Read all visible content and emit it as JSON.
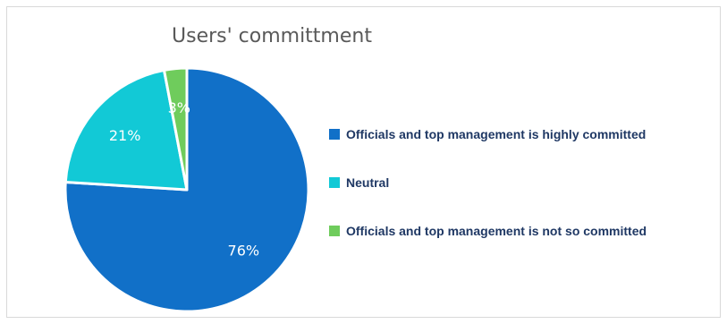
{
  "chart_data": {
    "type": "pie",
    "title": "Users' committment",
    "categories": [
      "Officials and top management is highly committed",
      "Neutral",
      "Officials and top management is not so committed"
    ],
    "values": [
      76,
      21,
      3
    ],
    "data_labels": [
      "76%",
      "21%",
      "3%"
    ],
    "colors": [
      "#1170c8",
      "#12c9d6",
      "#6fcc5c"
    ],
    "legend_position": "right",
    "start_angle_deg": 0,
    "direction": "clockwise"
  }
}
